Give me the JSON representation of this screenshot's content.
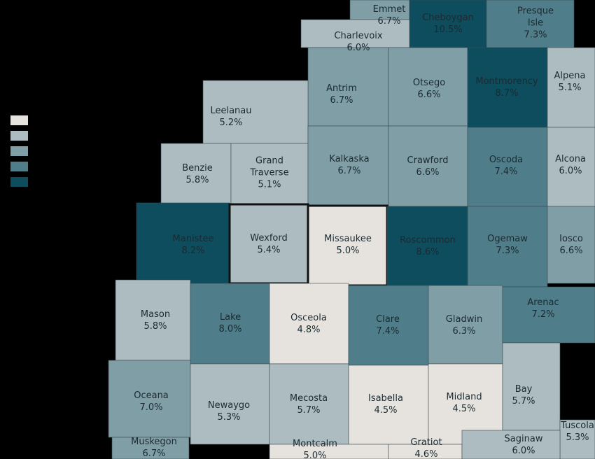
{
  "counties": [
    {
      "name": "Emmet",
      "rate": "6.7%",
      "color": "#7f9ea6"
    },
    {
      "name": "Cheboygan",
      "rate": "10.5%",
      "color": "#0d4d5e"
    },
    {
      "name": "Presque Isle",
      "rate": "7.3%",
      "color": "#4f7d8a"
    },
    {
      "name": "Charlevoix",
      "rate": "6.0%",
      "color": "#adbcc1"
    },
    {
      "name": "Antrim",
      "rate": "6.7%",
      "color": "#7f9ea6"
    },
    {
      "name": "Otsego",
      "rate": "6.6%",
      "color": "#7f9ea6"
    },
    {
      "name": "Montmorency",
      "rate": "8.7%",
      "color": "#0d4d5e"
    },
    {
      "name": "Alpena",
      "rate": "5.1%",
      "color": "#adbcc1"
    },
    {
      "name": "Leelanau",
      "rate": "5.2%",
      "color": "#adbcc1"
    },
    {
      "name": "Benzie",
      "rate": "5.8%",
      "color": "#adbcc1"
    },
    {
      "name": "Grand Traverse",
      "rate": "5.1%",
      "color": "#adbcc1"
    },
    {
      "name": "Kalkaska",
      "rate": "6.7%",
      "color": "#7f9ea6"
    },
    {
      "name": "Crawford",
      "rate": "6.6%",
      "color": "#7f9ea6"
    },
    {
      "name": "Oscoda",
      "rate": "7.4%",
      "color": "#4f7d8a"
    },
    {
      "name": "Alcona",
      "rate": "6.0%",
      "color": "#adbcc1"
    },
    {
      "name": "Manistee",
      "rate": "8.2%",
      "color": "#0d4d5e"
    },
    {
      "name": "Wexford",
      "rate": "5.4%",
      "color": "#adbcc1"
    },
    {
      "name": "Missaukee",
      "rate": "5.0%",
      "color": "#e6e3df"
    },
    {
      "name": "Roscommon",
      "rate": "8.6%",
      "color": "#0d4d5e"
    },
    {
      "name": "Ogemaw",
      "rate": "7.3%",
      "color": "#4f7d8a"
    },
    {
      "name": "Iosco",
      "rate": "6.6%",
      "color": "#7f9ea6"
    },
    {
      "name": "Mason",
      "rate": "5.8%",
      "color": "#adbcc1"
    },
    {
      "name": "Lake",
      "rate": "8.0%",
      "color": "#4f7d8a"
    },
    {
      "name": "Osceola",
      "rate": "4.8%",
      "color": "#e6e3df"
    },
    {
      "name": "Clare",
      "rate": "7.4%",
      "color": "#4f7d8a"
    },
    {
      "name": "Gladwin",
      "rate": "6.3%",
      "color": "#7f9ea6"
    },
    {
      "name": "Arenac",
      "rate": "7.2%",
      "color": "#4f7d8a"
    },
    {
      "name": "Oceana",
      "rate": "7.0%",
      "color": "#7f9ea6"
    },
    {
      "name": "Newaygo",
      "rate": "5.3%",
      "color": "#adbcc1"
    },
    {
      "name": "Mecosta",
      "rate": "5.7%",
      "color": "#adbcc1"
    },
    {
      "name": "Isabella",
      "rate": "4.5%",
      "color": "#e6e3df"
    },
    {
      "name": "Midland",
      "rate": "4.5%",
      "color": "#e6e3df"
    },
    {
      "name": "Bay",
      "rate": "5.7%",
      "color": "#adbcc1"
    },
    {
      "name": "Tuscola",
      "rate": "5.3%",
      "color": "#adbcc1"
    },
    {
      "name": "Muskegon",
      "rate": "6.7%",
      "color": "#7f9ea6"
    },
    {
      "name": "Montcalm",
      "rate": "5.0%",
      "color": "#e6e3df"
    },
    {
      "name": "Gratiot",
      "rate": "4.6%",
      "color": "#e6e3df"
    },
    {
      "name": "Saginaw",
      "rate": "6.0%",
      "color": "#adbcc1"
    }
  ]
}
